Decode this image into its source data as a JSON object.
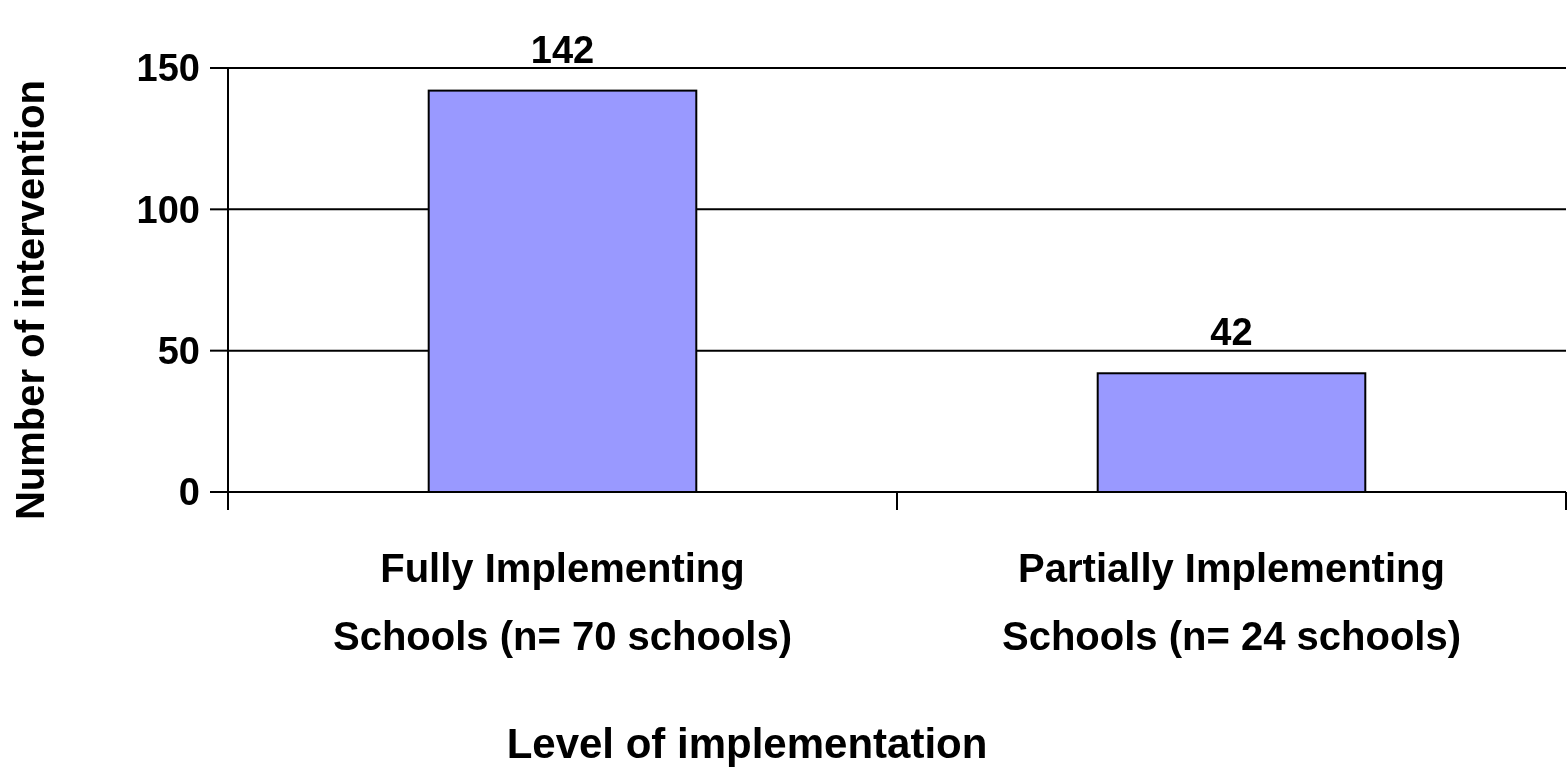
{
  "chart_data": {
    "type": "bar",
    "xlabel": "Level of implementation",
    "ylabel": "Number of intervention",
    "categories": [
      "Fully Implementing\nSchools (n= 70 schools)",
      "Partially Implementing\nSchools (n= 24 schools)"
    ],
    "values": [
      142,
      42
    ],
    "color": "#9999ff",
    "ylim": [
      0,
      150
    ],
    "yticks": [
      0,
      50,
      100,
      150
    ],
    "grid": "y",
    "data_labels": true
  }
}
